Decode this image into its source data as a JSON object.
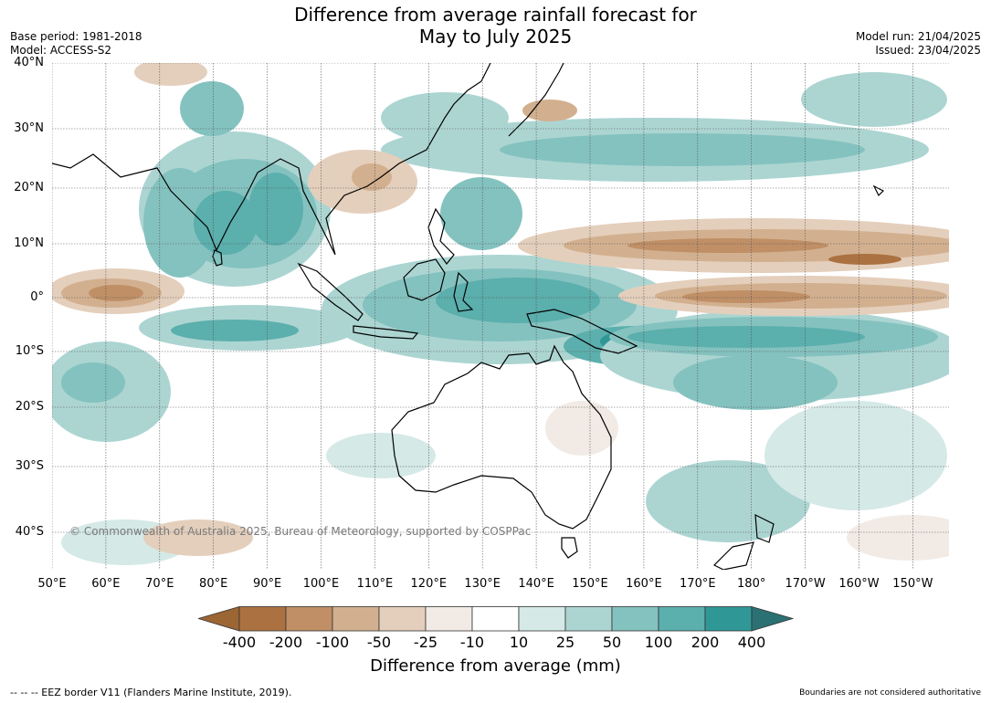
{
  "header": {
    "title_line1": "Difference from average rainfall forecast for",
    "title_line2": "May to July 2025",
    "base_period": "Base period: 1981-2018",
    "model": "Model: ACCESS-S2",
    "model_run": "Model run: 21/04/2025",
    "issued": "Issued: 23/04/2025"
  },
  "map": {
    "lat_labels": [
      "40°N",
      "30°N",
      "20°N",
      "10°N",
      "0°",
      "10°S",
      "20°S",
      "30°S",
      "40°S"
    ],
    "lon_labels": [
      "50°E",
      "60°E",
      "70°E",
      "80°E",
      "90°E",
      "100°E",
      "110°E",
      "120°E",
      "130°E",
      "140°E",
      "150°E",
      "160°E",
      "170°E",
      "180°",
      "170°W",
      "160°W",
      "150°W"
    ],
    "copyright": "© Commonwealth of Australia 2025, Bureau of Meteorology, supported by COSPPac",
    "colors": {
      "grid": "#555555",
      "coast": "#000000",
      "border": "#888888"
    }
  },
  "colorbar": {
    "labels": [
      "-400",
      "-200",
      "-100",
      "-50",
      "-25",
      "-10",
      "10",
      "25",
      "50",
      "100",
      "200",
      "400"
    ],
    "colors": [
      "#9c6534",
      "#ab7140",
      "#c08f66",
      "#d2b08f",
      "#e4cfbc",
      "#f2ebe5",
      "#ffffff",
      "#d5e9e7",
      "#acd5d2",
      "#84c2bf",
      "#5bafad",
      "#2f9896",
      "#2b7173"
    ],
    "title": "Difference from average (mm)"
  },
  "footer": {
    "eez_note": "--  --  -- EEZ border V11 (Flanders Marine Institute, 2019).",
    "disclaimer": "Boundaries are not considered authoritative"
  }
}
